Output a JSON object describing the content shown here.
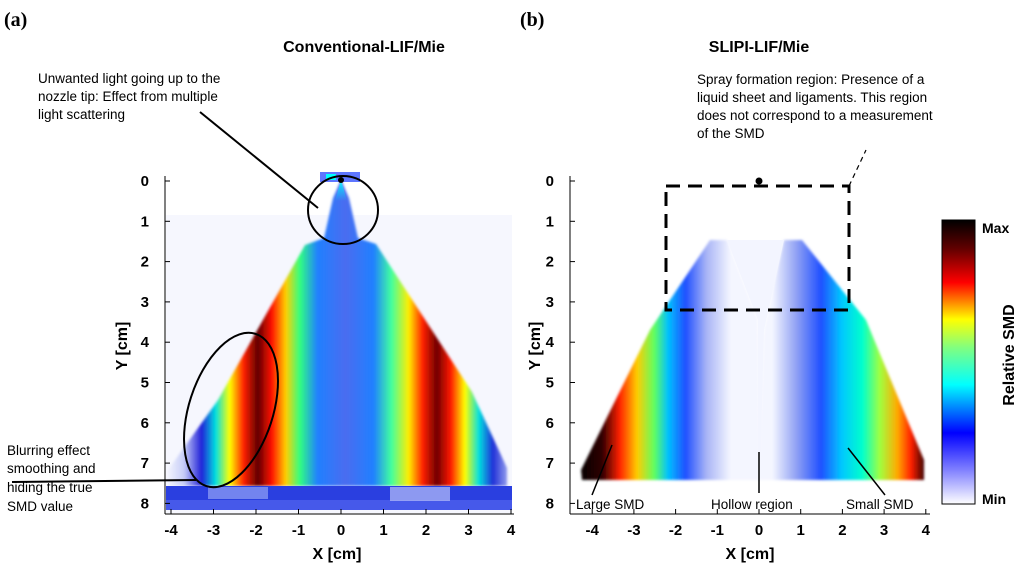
{
  "figure": {
    "panels": [
      {
        "label": "(a)",
        "title": "Conventional-LIF/Mie",
        "annotations": [
          {
            "lines": [
              "Unwanted light going up to the",
              "nozzle tip: Effect from multiple",
              "light scattering"
            ]
          },
          {
            "lines": [
              "Blurring effect",
              "smoothing and",
              "hiding the true",
              "SMD value"
            ]
          }
        ]
      },
      {
        "label": "(b)",
        "title": "SLIPI-LIF/Mie",
        "annotations": [
          {
            "lines": [
              "Spray formation region: Presence of a",
              "liquid sheet and ligaments. This region",
              "does not correspond to a measurement",
              "of the SMD"
            ]
          },
          {
            "lines": [
              "Large SMD"
            ]
          },
          {
            "lines": [
              "Hollow region"
            ]
          },
          {
            "lines": [
              "Small SMD"
            ]
          }
        ]
      }
    ],
    "colorbar": {
      "label": "Relative SMD",
      "max_label": "Max",
      "min_label": "Min"
    },
    "colors": {
      "stops": [
        "#ffffff",
        "#0000ff",
        "#00ffff",
        "#ffff00",
        "#ff0000",
        "#000000"
      ]
    }
  },
  "chart_data": [
    {
      "type": "heatmap",
      "title": "Conventional-LIF/Mie",
      "xlabel": "X [cm]",
      "ylabel": "Y [cm]",
      "xticks": [
        -4,
        -3,
        -2,
        -1,
        0,
        1,
        2,
        3,
        4
      ],
      "yticks": [
        0,
        1,
        2,
        3,
        4,
        5,
        6,
        7,
        8
      ],
      "xlim": [
        -4.5,
        4.3
      ],
      "ylim": [
        8.2,
        -0.2
      ],
      "y_inverted": true
    },
    {
      "type": "heatmap",
      "title": "SLIPI-LIF/Mie",
      "xlabel": "X [cm]",
      "ylabel": "Y [cm]",
      "xticks": [
        -4,
        -3,
        -2,
        -1,
        0,
        1,
        2,
        3,
        4
      ],
      "yticks": [
        0,
        1,
        2,
        3,
        4,
        5,
        6,
        7,
        8
      ],
      "xlim": [
        -4.4,
        4.5
      ],
      "ylim": [
        8.2,
        -0.2
      ],
      "y_inverted": true,
      "dashed_region": {
        "x": [
          -2.2,
          2.2
        ],
        "y": [
          0.15,
          3.2
        ]
      },
      "colorbar": {
        "label": "Relative SMD",
        "range": [
          "Min",
          "Max"
        ]
      }
    }
  ]
}
